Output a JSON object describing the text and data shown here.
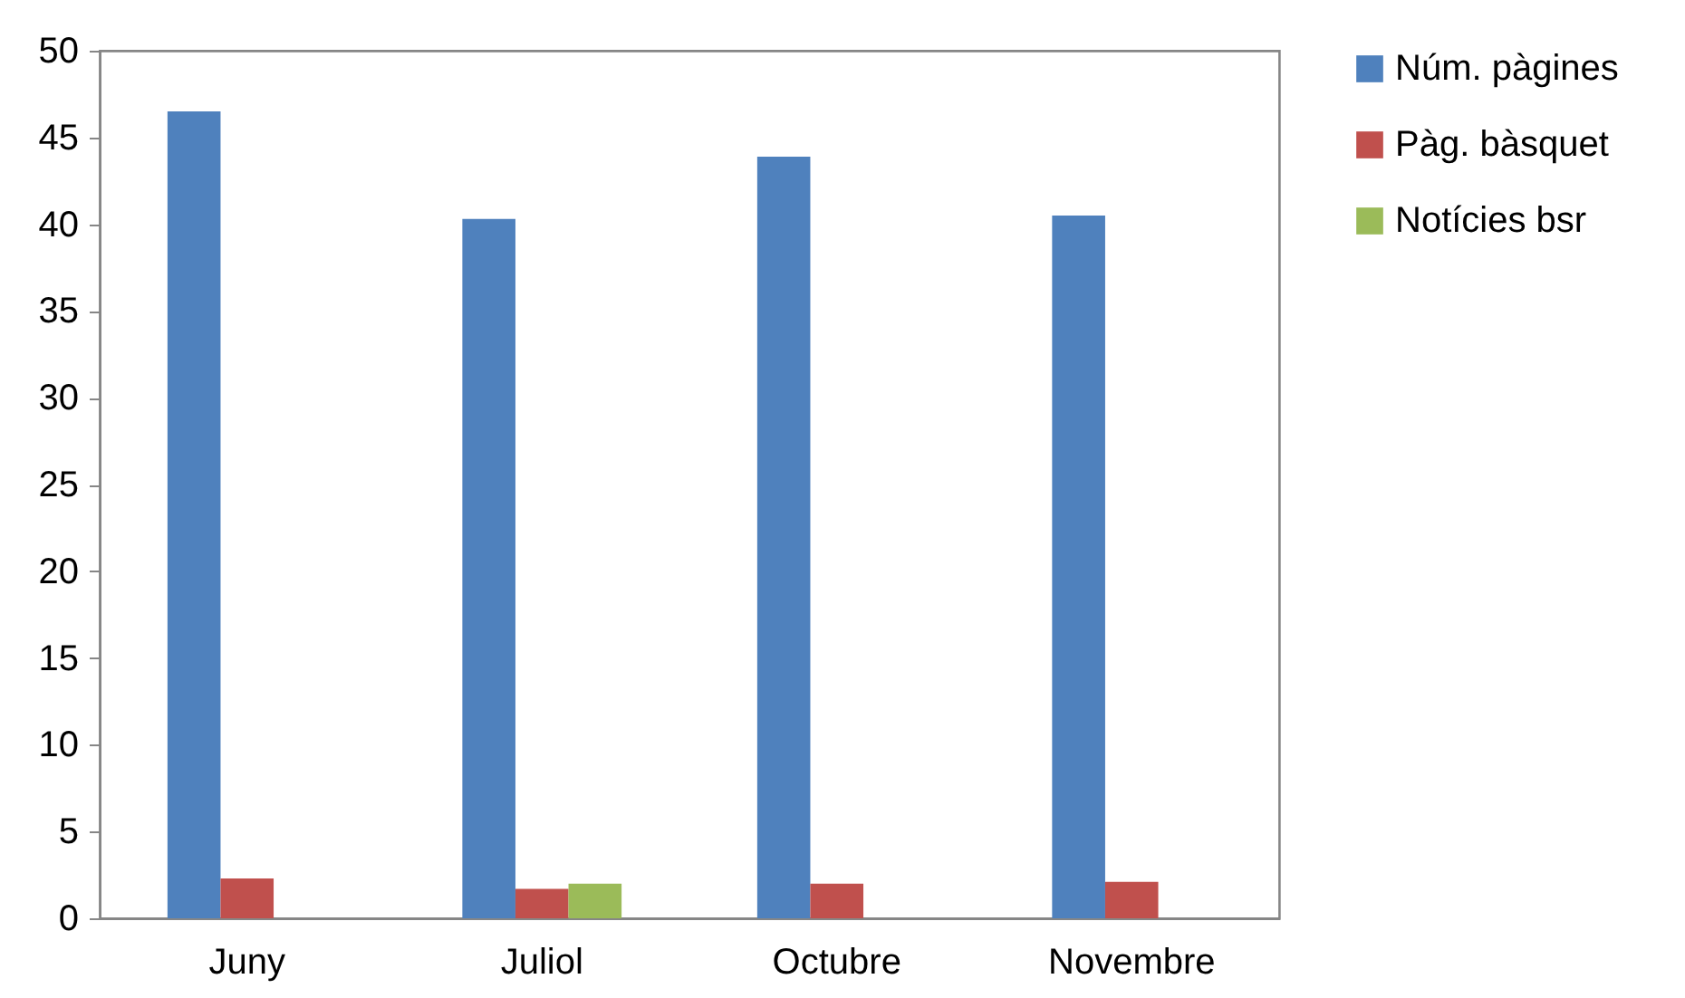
{
  "chart_data": {
    "type": "bar",
    "categories": [
      "Juny",
      "Juliol",
      "Octubre",
      "Novembre"
    ],
    "series": [
      {
        "name": "Núm. pàgines",
        "color": "#4f81bd",
        "values": [
          46.5,
          40.3,
          43.9,
          40.5
        ]
      },
      {
        "name": "Pàg. bàsquet",
        "color": "#c0504d",
        "values": [
          2.3,
          1.7,
          2.0,
          2.1
        ]
      },
      {
        "name": "Notícies bsr",
        "color": "#9bbb59",
        "values": [
          null,
          2.0,
          null,
          null
        ]
      }
    ],
    "ylim": [
      0,
      50
    ],
    "yticks": [
      0,
      5,
      10,
      15,
      20,
      25,
      30,
      35,
      40,
      45,
      50
    ],
    "grid": false,
    "legend": "right"
  }
}
